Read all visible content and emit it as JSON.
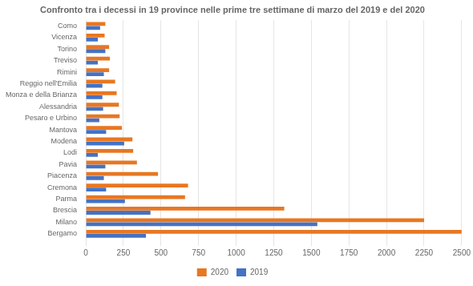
{
  "chart_data": {
    "type": "bar",
    "orientation": "horizontal",
    "title": "Confronto tra i decessi in 19 province nelle prime tre settimane di marzo del 2019 e del 2020",
    "categories": [
      "Como",
      "Vicenza",
      "Torino",
      "Treviso",
      "Rimini",
      "Reggio nell'Emilia",
      "Monza e della Brianza",
      "Alessandria",
      "Pesaro e Urbino",
      "Mantova",
      "Modena",
      "Lodi",
      "Pavia",
      "Piacenza",
      "Cremona",
      "Parma",
      "Brescia",
      "Milano",
      "Bergamo"
    ],
    "series": [
      {
        "name": "2020",
        "color": "#E87722",
        "values": [
          130,
          125,
          155,
          160,
          155,
          195,
          205,
          220,
          225,
          240,
          310,
          315,
          340,
          480,
          680,
          660,
          1320,
          2250,
          2500
        ]
      },
      {
        "name": "2019",
        "color": "#4472C4",
        "values": [
          95,
          80,
          130,
          80,
          120,
          110,
          110,
          115,
          90,
          135,
          255,
          80,
          130,
          120,
          135,
          260,
          430,
          1540,
          400
        ]
      }
    ],
    "xlim": [
      0,
      2500
    ],
    "xticks": [
      0,
      250,
      500,
      750,
      1000,
      1250,
      1500,
      1750,
      2000,
      2250,
      2500
    ],
    "grid": true,
    "legend": "bottom"
  }
}
